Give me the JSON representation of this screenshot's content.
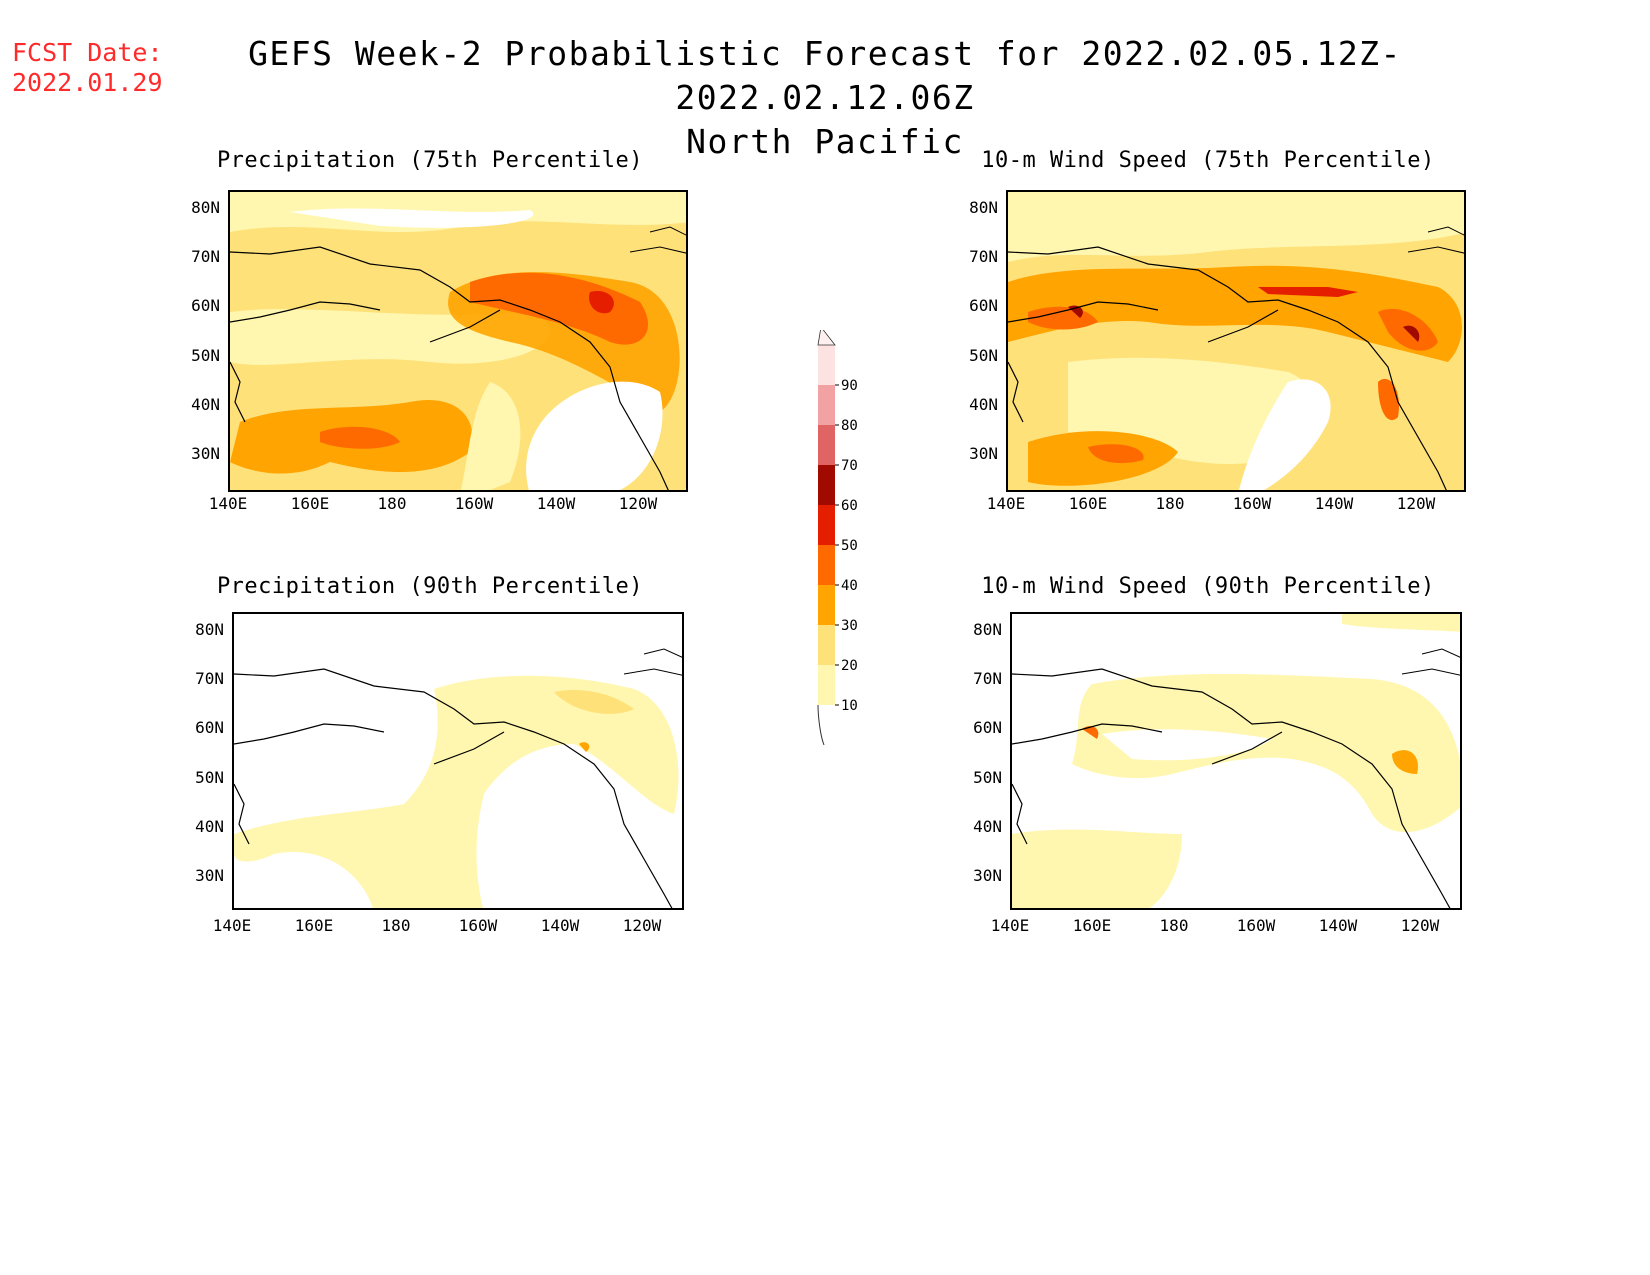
{
  "header": {
    "fcst_label": "FCST Date:",
    "fcst_date": "2022.01.29",
    "title": "GEFS Week-2 Probabilistic Forecast for 2022.02.05.12Z-2022.02.12.06Z",
    "region": "North Pacific"
  },
  "axes": {
    "lat_labels": [
      "80N",
      "70N",
      "60N",
      "50N",
      "40N",
      "30N"
    ],
    "lon_labels": [
      "140E",
      "160E",
      "180",
      "160W",
      "140W",
      "120W"
    ]
  },
  "panels": [
    {
      "id": "precip75",
      "title": "Precipitation (75th Percentile)"
    },
    {
      "id": "wind75",
      "title": "10-m Wind Speed (75th Percentile)"
    },
    {
      "id": "precip90",
      "title": "Precipitation (90th Percentile)"
    },
    {
      "id": "wind90",
      "title": "10-m Wind Speed (90th Percentile)"
    }
  ],
  "colorbar": {
    "levels": [
      "10",
      "20",
      "30",
      "40",
      "50",
      "60",
      "70",
      "80",
      "90"
    ],
    "colors": [
      "#fff7b0",
      "#ffe17a",
      "#ffa400",
      "#ff6a00",
      "#e61e00",
      "#a00a00",
      "#e06464",
      "#f2a2a2",
      "#fde2e2"
    ]
  }
}
